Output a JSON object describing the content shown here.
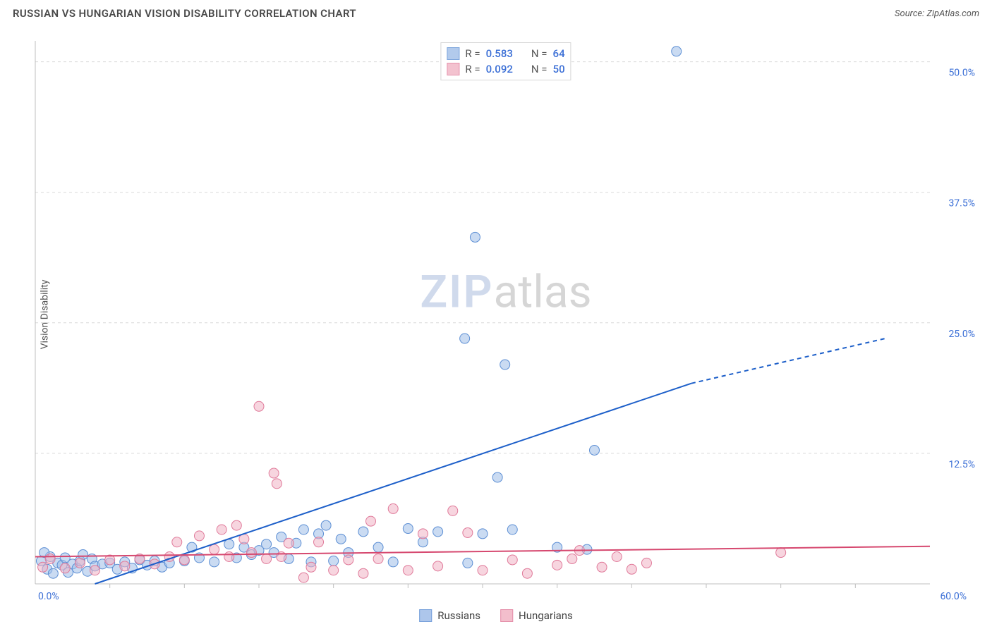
{
  "header": {
    "title": "RUSSIAN VS HUNGARIAN VISION DISABILITY CORRELATION CHART",
    "source_prefix": "Source: ",
    "source_name": "ZipAtlas.com"
  },
  "ylabel": "Vision Disability",
  "watermark": {
    "part1": "ZIP",
    "part2": "atlas"
  },
  "chart": {
    "type": "scatter",
    "background_color": "#ffffff",
    "grid_color": "#d9d9d9",
    "axis_color": "#bfbfbf",
    "tick_color": "#bfbfbf",
    "label_color": "#3b6fd6",
    "xlim": [
      0,
      60
    ],
    "ylim": [
      0,
      52
    ],
    "xtick_labels": [
      {
        "v": 0,
        "label": "0.0%"
      },
      {
        "v": 60,
        "label": "60.0%"
      }
    ],
    "xtick_minor": [
      5,
      10,
      15,
      20,
      25,
      30,
      35,
      40,
      45,
      50,
      55
    ],
    "ytick_labels": [
      {
        "v": 12.5,
        "label": "12.5%"
      },
      {
        "v": 25.0,
        "label": "25.0%"
      },
      {
        "v": 37.5,
        "label": "37.5%"
      },
      {
        "v": 50.0,
        "label": "50.0%"
      }
    ],
    "series": [
      {
        "name": "Russians",
        "marker_fill": "#9fbde8",
        "marker_stroke": "#5d8fd4",
        "marker_fill_opacity": 0.55,
        "marker_r": 7,
        "line_color": "#1d5fc9",
        "line_width": 2,
        "trend": {
          "x1": 4,
          "y1": 0,
          "x2": 44,
          "y2": 19.2,
          "dash_from_x": 44,
          "dash_to_x": 57,
          "dash_to_y": 23.5
        },
        "R": "0.583",
        "N": "64",
        "points": [
          [
            0.4,
            2.2
          ],
          [
            0.8,
            1.4
          ],
          [
            1.0,
            2.6
          ],
          [
            1.2,
            1.0
          ],
          [
            1.5,
            2.0
          ],
          [
            1.8,
            1.8
          ],
          [
            2.0,
            2.5
          ],
          [
            2.2,
            1.1
          ],
          [
            2.5,
            1.9
          ],
          [
            2.8,
            1.5
          ],
          [
            3.0,
            2.2
          ],
          [
            3.5,
            1.2
          ],
          [
            3.8,
            2.4
          ],
          [
            4.0,
            1.7
          ],
          [
            4.5,
            1.9
          ],
          [
            5.0,
            2.0
          ],
          [
            5.5,
            1.4
          ],
          [
            6.0,
            2.1
          ],
          [
            6.5,
            1.5
          ],
          [
            7.0,
            2.3
          ],
          [
            7.5,
            1.8
          ],
          [
            8.0,
            2.2
          ],
          [
            8.5,
            1.6
          ],
          [
            9.0,
            2.0
          ],
          [
            10.0,
            2.2
          ],
          [
            10.5,
            3.5
          ],
          [
            11.0,
            2.5
          ],
          [
            12.0,
            2.1
          ],
          [
            13.0,
            3.8
          ],
          [
            13.5,
            2.5
          ],
          [
            14.0,
            3.5
          ],
          [
            14.5,
            2.8
          ],
          [
            15.0,
            3.2
          ],
          [
            15.5,
            3.8
          ],
          [
            16.0,
            3.0
          ],
          [
            16.5,
            4.5
          ],
          [
            17.0,
            2.4
          ],
          [
            17.5,
            3.9
          ],
          [
            18.0,
            5.2
          ],
          [
            18.5,
            2.1
          ],
          [
            19.0,
            4.8
          ],
          [
            19.5,
            5.6
          ],
          [
            20.0,
            2.2
          ],
          [
            20.5,
            4.3
          ],
          [
            21.0,
            3.0
          ],
          [
            22.0,
            5.0
          ],
          [
            23.0,
            3.5
          ],
          [
            24.0,
            2.1
          ],
          [
            25.0,
            5.3
          ],
          [
            26.0,
            4.0
          ],
          [
            27.0,
            5.0
          ],
          [
            28.8,
            23.5
          ],
          [
            29.0,
            2.0
          ],
          [
            29.5,
            33.2
          ],
          [
            30.0,
            4.8
          ],
          [
            31.0,
            10.2
          ],
          [
            31.5,
            21.0
          ],
          [
            32.0,
            5.2
          ],
          [
            35.0,
            3.5
          ],
          [
            37.0,
            3.3
          ],
          [
            37.5,
            12.8
          ],
          [
            43.0,
            51.0
          ],
          [
            0.6,
            3.0
          ],
          [
            3.2,
            2.8
          ]
        ]
      },
      {
        "name": "Hungarians",
        "marker_fill": "#f1b3c4",
        "marker_stroke": "#e07a9a",
        "marker_fill_opacity": 0.55,
        "marker_r": 7,
        "line_color": "#d6486f",
        "line_width": 2,
        "trend": {
          "x1": 0,
          "y1": 2.6,
          "x2": 60,
          "y2": 3.6
        },
        "R": "0.092",
        "N": "50",
        "points": [
          [
            0.5,
            1.6
          ],
          [
            1.0,
            2.4
          ],
          [
            2.0,
            1.5
          ],
          [
            3.0,
            2.0
          ],
          [
            4.0,
            1.3
          ],
          [
            5.0,
            2.3
          ],
          [
            6.0,
            1.7
          ],
          [
            7.0,
            2.4
          ],
          [
            8.0,
            1.9
          ],
          [
            9.0,
            2.6
          ],
          [
            9.5,
            4.0
          ],
          [
            10.0,
            2.3
          ],
          [
            11.0,
            4.6
          ],
          [
            12.0,
            3.3
          ],
          [
            12.5,
            5.2
          ],
          [
            13.0,
            2.6
          ],
          [
            13.5,
            5.6
          ],
          [
            14.0,
            4.3
          ],
          [
            14.5,
            3.0
          ],
          [
            15.0,
            17.0
          ],
          [
            15.5,
            2.4
          ],
          [
            16.0,
            10.6
          ],
          [
            16.2,
            9.6
          ],
          [
            16.5,
            2.6
          ],
          [
            17.0,
            3.9
          ],
          [
            18.0,
            0.6
          ],
          [
            18.5,
            1.6
          ],
          [
            19.0,
            4.0
          ],
          [
            20.0,
            1.3
          ],
          [
            21.0,
            2.3
          ],
          [
            22.0,
            1.0
          ],
          [
            22.5,
            6.0
          ],
          [
            23.0,
            2.4
          ],
          [
            24.0,
            7.2
          ],
          [
            25.0,
            1.3
          ],
          [
            26.0,
            4.8
          ],
          [
            27.0,
            1.7
          ],
          [
            28.0,
            7.0
          ],
          [
            29.0,
            4.9
          ],
          [
            30.0,
            1.3
          ],
          [
            32.0,
            2.3
          ],
          [
            33.0,
            1.0
          ],
          [
            35.0,
            1.8
          ],
          [
            36.0,
            2.4
          ],
          [
            38.0,
            1.6
          ],
          [
            39.0,
            2.6
          ],
          [
            40.0,
            1.4
          ],
          [
            41.0,
            2.0
          ],
          [
            50.0,
            3.0
          ],
          [
            36.5,
            3.2
          ]
        ]
      }
    ]
  },
  "legend_top": {
    "r_label": "R =",
    "n_label": "N ="
  },
  "legend_bottom": {
    "items": [
      "Russians",
      "Hungarians"
    ]
  }
}
